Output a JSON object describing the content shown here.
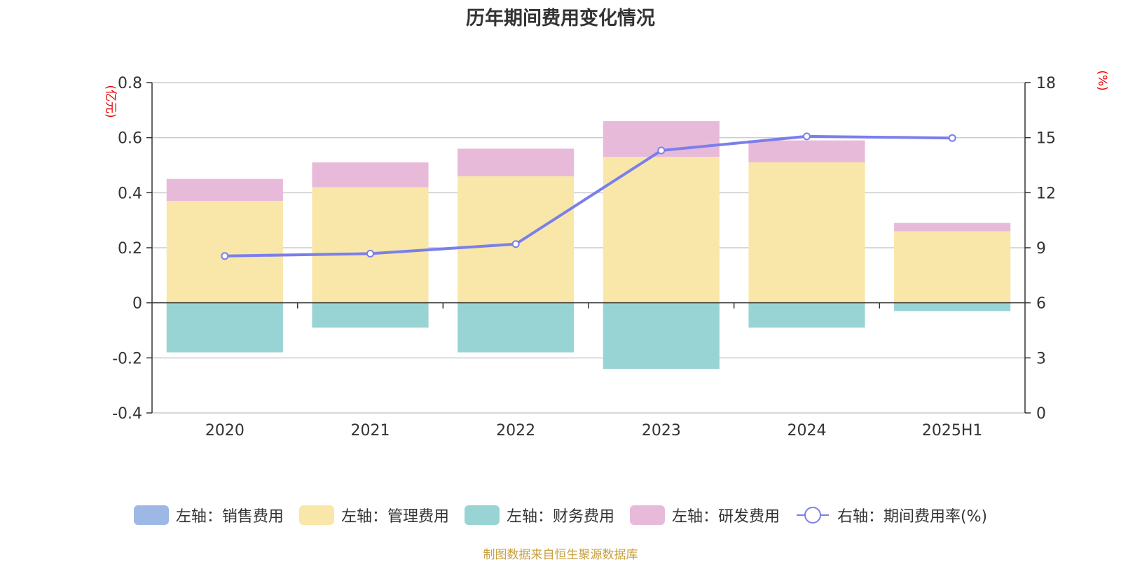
{
  "chart_data": {
    "type": "bar",
    "title": "历年期间费用变化情况",
    "categories": [
      "2020",
      "2021",
      "2022",
      "2023",
      "2024",
      "2025H1"
    ],
    "y_left": {
      "unit_label": "(亿元)",
      "ylim": [
        -0.4,
        0.8
      ],
      "ticks": [
        "-0.4",
        "-0.2",
        "0",
        "0.2",
        "0.4",
        "0.6",
        "0.8"
      ],
      "tick_values": [
        -0.4,
        -0.2,
        0,
        0.2,
        0.4,
        0.6,
        0.8
      ]
    },
    "y_right": {
      "unit_label": "(%)",
      "ylim": [
        0,
        18
      ],
      "ticks": [
        "0",
        "3",
        "6",
        "9",
        "12",
        "15",
        "18"
      ],
      "tick_values": [
        0,
        3,
        6,
        9,
        12,
        15,
        18
      ]
    },
    "grid": true,
    "legend_position": "bottom",
    "series": [
      {
        "name": "左轴：销售费用",
        "type": "bar",
        "axis": "left",
        "color": "#9db8e4",
        "values": [
          0,
          0,
          0,
          0,
          0,
          0
        ]
      },
      {
        "name": "左轴：管理费用",
        "type": "bar",
        "axis": "left",
        "color": "#f8e7a8",
        "values": [
          0.37,
          0.42,
          0.46,
          0.53,
          0.51,
          0.26
        ]
      },
      {
        "name": "左轴：财务费用",
        "type": "bar",
        "axis": "left",
        "color": "#99d4d4",
        "values": [
          -0.18,
          -0.09,
          -0.18,
          -0.24,
          -0.09,
          -0.03
        ]
      },
      {
        "name": "左轴：研发费用",
        "type": "bar",
        "axis": "left",
        "color": "#e8bada",
        "values": [
          0.08,
          0.09,
          0.1,
          0.13,
          0.08,
          0.03
        ]
      },
      {
        "name": "右轴：期间费用率(%)",
        "type": "line",
        "axis": "right",
        "color": "#7b7fea",
        "values": [
          8.55,
          8.68,
          9.2,
          14.3,
          15.07,
          14.98
        ]
      }
    ]
  },
  "source_note": "制图数据来自恒生聚源数据库"
}
